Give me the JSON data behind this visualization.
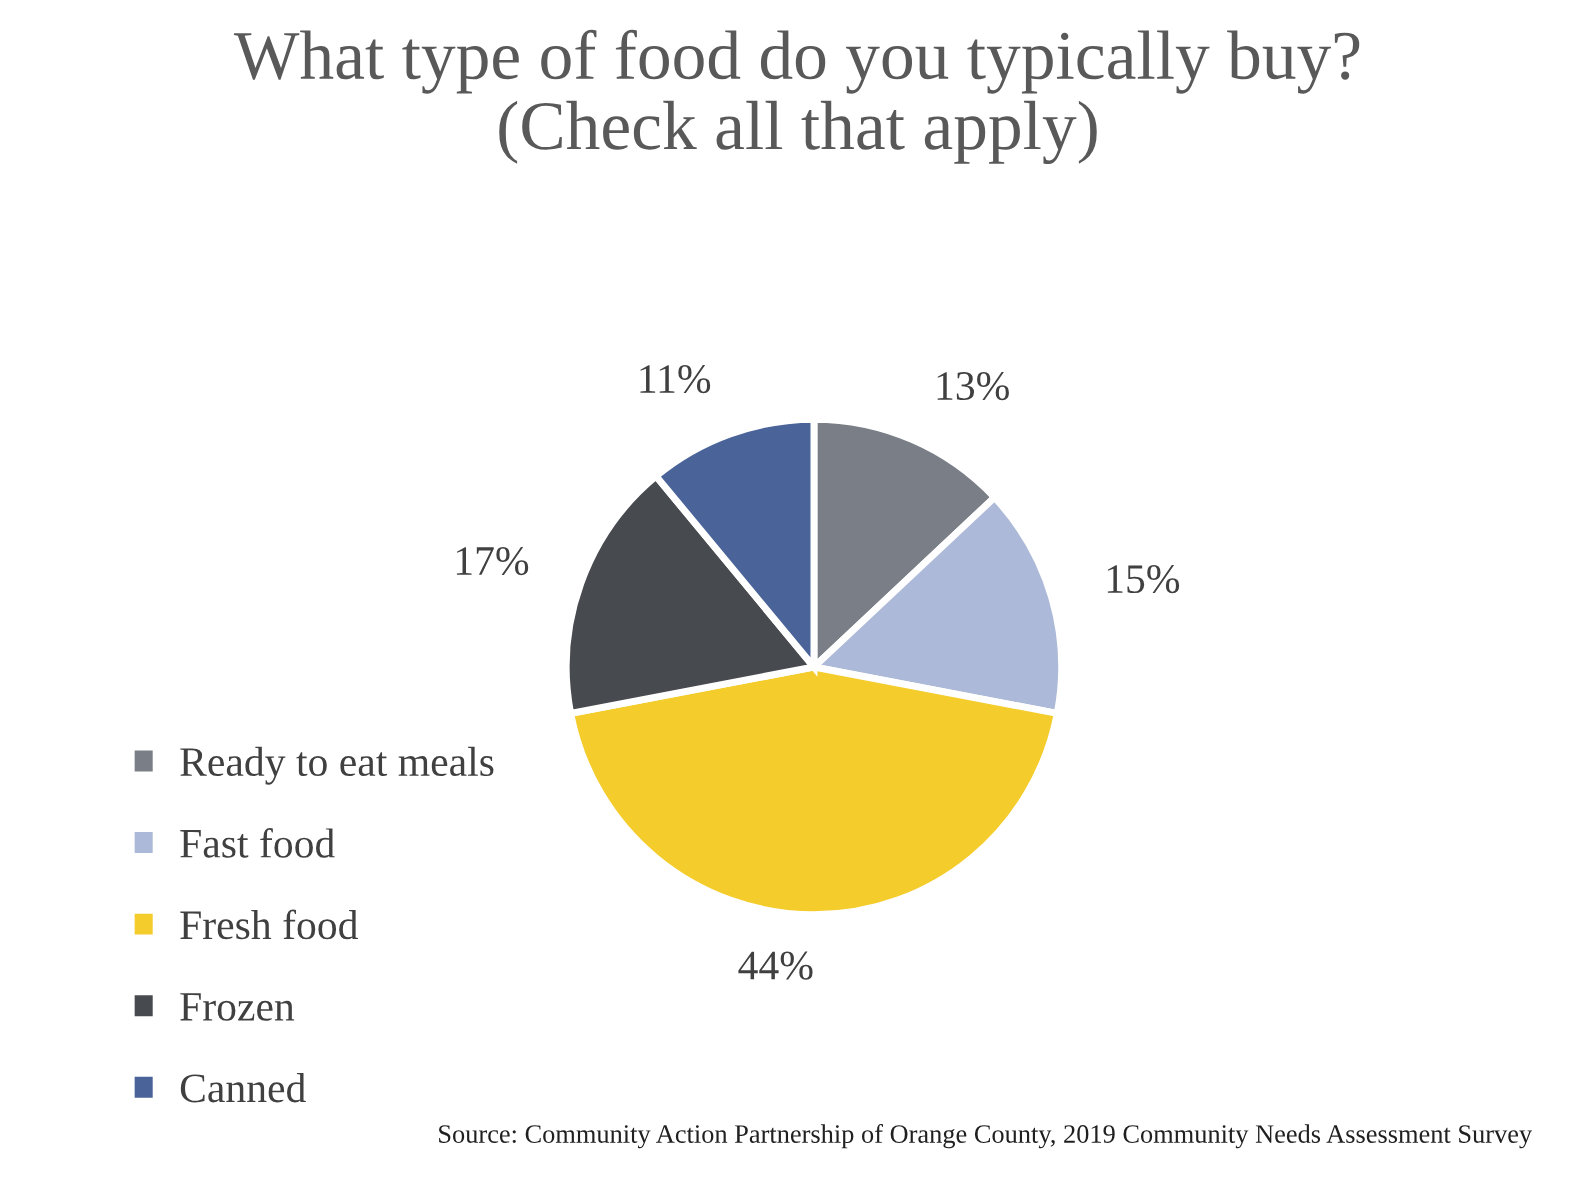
{
  "chart_data": {
    "type": "pie",
    "title": "What type of food do you typically buy?\n(Check all that apply)",
    "categories": [
      "Ready to eat meals",
      "Fast food",
      "Fresh food",
      "Frozen",
      "Canned"
    ],
    "values": [
      13,
      15,
      44,
      17,
      11
    ],
    "colors": [
      "#7a7e87",
      "#adb9d8",
      "#f4cc2c",
      "#474a4f",
      "#4a6499"
    ],
    "value_labels": [
      "13%",
      "15%",
      "44%",
      "17%",
      "11%"
    ],
    "legend": "left",
    "annotations": [
      "Source: Community Action Partnership of Orange County, 2019 Community Needs Assessment Survey"
    ]
  }
}
